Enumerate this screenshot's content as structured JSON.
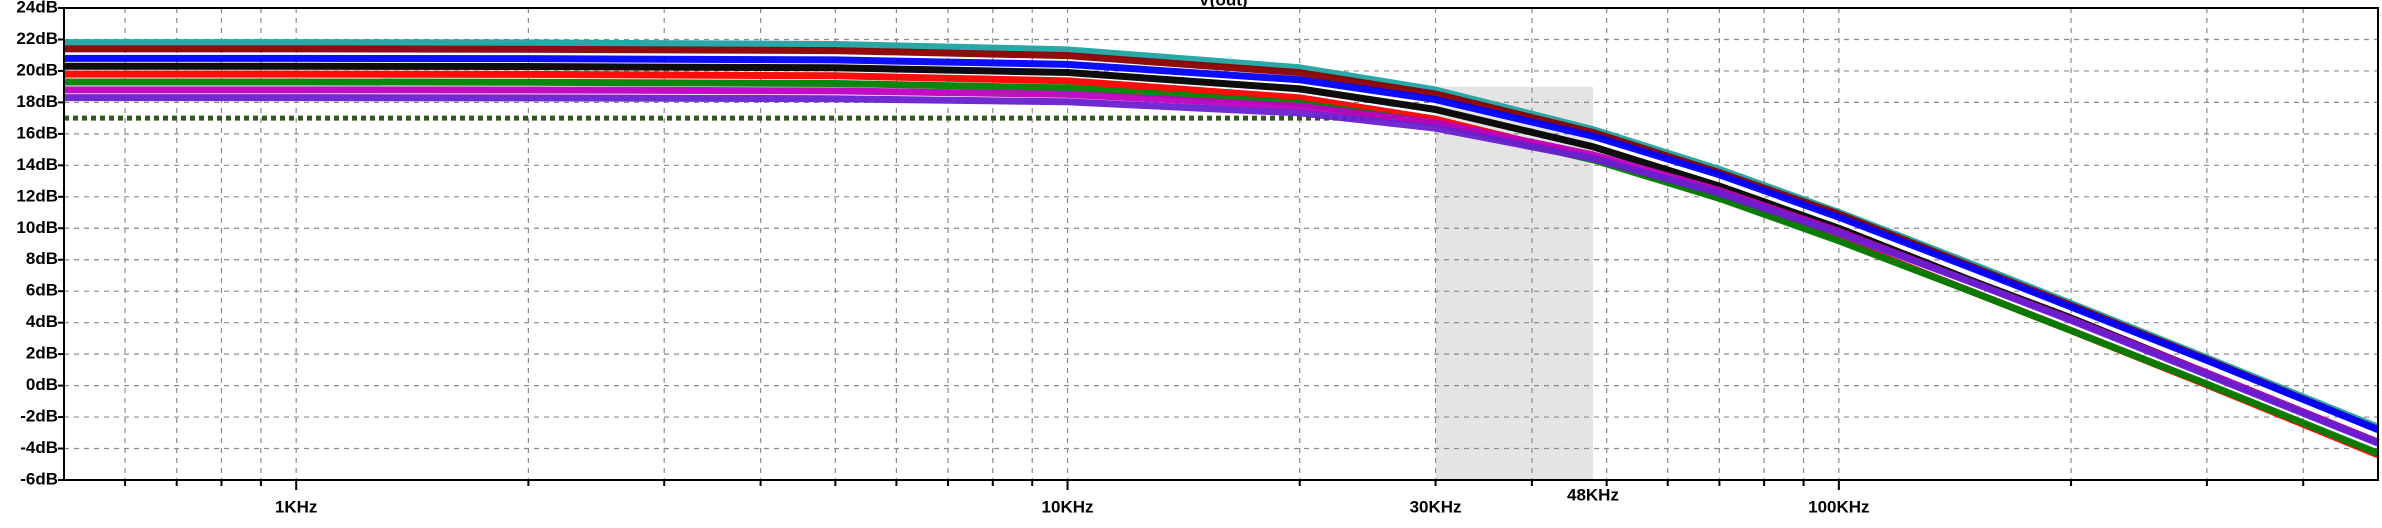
{
  "chart_data": {
    "type": "line",
    "title": "V(out)",
    "xscale": "log",
    "grid": true,
    "x": [
      500,
      1000,
      2000,
      5000,
      10000,
      20000,
      30000,
      48000,
      70000,
      100000,
      150000,
      200000,
      300000,
      500000
    ],
    "series": [
      {
        "color": "#1fa3a3",
        "values": [
          21.8,
          21.8,
          21.78,
          21.68,
          21.34,
          20.2,
          18.79,
          16.27,
          13.74,
          11.01,
          7.65,
          5.22,
          1.76,
          -2.65
        ]
      },
      {
        "color": "#8b0000",
        "values": [
          21.4,
          21.4,
          21.38,
          21.29,
          20.97,
          19.89,
          18.53,
          16.09,
          13.54,
          10.9,
          7.5,
          5.1,
          1.65,
          -2.8
        ]
      },
      {
        "color": "#0000ff",
        "values": [
          20.8,
          20.8,
          20.78,
          20.7,
          20.42,
          19.44,
          18.18,
          15.85,
          13.4,
          10.7,
          7.4,
          5.0,
          1.6,
          -2.8
        ]
      },
      {
        "color": "#000000",
        "values": [
          20.3,
          20.3,
          20.28,
          20.2,
          19.9,
          18.86,
          17.55,
          15.18,
          12.68,
          10.0,
          6.6,
          4.3,
          0.8,
          -3.6
        ]
      },
      {
        "color": "#ff0000",
        "values": [
          19.8,
          19.8,
          19.78,
          19.69,
          19.37,
          18.29,
          16.93,
          14.49,
          11.94,
          9.3,
          5.9,
          3.5,
          0.05,
          -4.4
        ]
      },
      {
        "color": "#008000",
        "values": [
          19.3,
          19.3,
          19.28,
          19.2,
          18.92,
          17.94,
          16.68,
          14.35,
          11.9,
          9.2,
          5.9,
          3.5,
          0.1,
          -4.3
        ]
      },
      {
        "color": "#c000c0",
        "values": [
          18.8,
          18.8,
          18.79,
          18.73,
          18.51,
          17.75,
          16.71,
          14.67,
          12.4,
          9.8,
          6.5,
          4.2,
          0.8,
          -3.6
        ]
      },
      {
        "color": "#6a1fd0",
        "values": [
          18.3,
          18.3,
          18.29,
          18.23,
          18.04,
          17.33,
          16.36,
          14.43,
          12.24,
          9.7,
          6.5,
          4.15,
          0.7,
          -3.66
        ]
      }
    ],
    "xlim": [
      500,
      500000
    ],
    "xticks": [
      {
        "value": 1000,
        "label": "1KHz"
      },
      {
        "value": 10000,
        "label": "10KHz"
      },
      {
        "value": 100000,
        "label": "100KHz"
      }
    ],
    "xminor": [
      600,
      700,
      800,
      900,
      2000,
      3000,
      4000,
      5000,
      6000,
      7000,
      8000,
      9000,
      20000,
      30000,
      40000,
      50000,
      60000,
      70000,
      80000,
      90000,
      200000,
      300000,
      400000
    ],
    "ylim": [
      -6,
      24
    ],
    "yticks": [
      {
        "value": -6,
        "label": "-6dB"
      },
      {
        "value": -4,
        "label": "-4dB"
      },
      {
        "value": -2,
        "label": "-2dB"
      },
      {
        "value": 0,
        "label": "0dB"
      },
      {
        "value": 2,
        "label": "2dB"
      },
      {
        "value": 4,
        "label": "4dB"
      },
      {
        "value": 6,
        "label": "6dB"
      },
      {
        "value": 8,
        "label": "8dB"
      },
      {
        "value": 10,
        "label": "10dB"
      },
      {
        "value": 12,
        "label": "12dB"
      },
      {
        "value": 14,
        "label": "14dB"
      },
      {
        "value": 16,
        "label": "16dB"
      },
      {
        "value": 18,
        "label": "18dB"
      },
      {
        "value": 20,
        "label": "20dB"
      },
      {
        "value": 22,
        "label": "22dB"
      },
      {
        "value": 24,
        "label": "24dB"
      }
    ],
    "highlight": {
      "x": [
        {
          "value": 30000,
          "label": "30KHz"
        },
        {
          "value": 48000,
          "label": "48KHz"
        }
      ],
      "top": 19,
      "color": "#e4e4e4"
    },
    "reference_line": {
      "y": 17,
      "x": [
        500,
        30000
      ],
      "color": "#2d5a1b"
    }
  }
}
